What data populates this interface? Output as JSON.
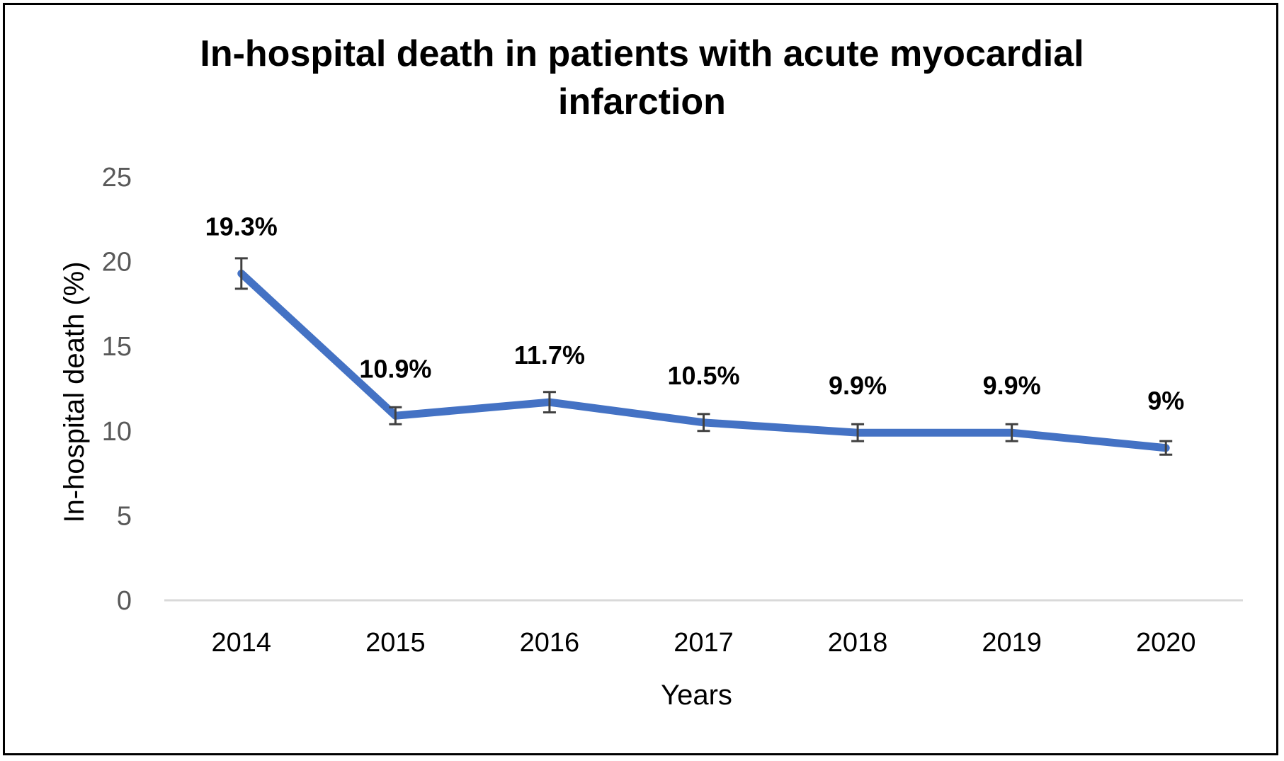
{
  "chart_data": {
    "type": "line",
    "title": "In-hospital death in patients with acute myocardial infarction",
    "xlabel": "Years",
    "ylabel": "In-hospital death (%)",
    "ylim": [
      0,
      25
    ],
    "yticks": [
      0,
      5,
      10,
      15,
      20,
      25
    ],
    "grid": false,
    "legend": "none",
    "categories": [
      "2014",
      "2015",
      "2016",
      "2017",
      "2018",
      "2019",
      "2020"
    ],
    "series": [
      {
        "values": [
          19.3,
          10.9,
          11.7,
          10.5,
          9.9,
          9.9,
          9.0
        ],
        "error": [
          0.9,
          0.5,
          0.6,
          0.5,
          0.5,
          0.5,
          0.4
        ],
        "labels": [
          "19.3%",
          "10.9%",
          "11.7%",
          "10.5%",
          "9.9%",
          "9.9%",
          "9%"
        ],
        "color": "#4472C4"
      }
    ],
    "axis_color": "#D9D9D9",
    "error_color": "#404040"
  }
}
